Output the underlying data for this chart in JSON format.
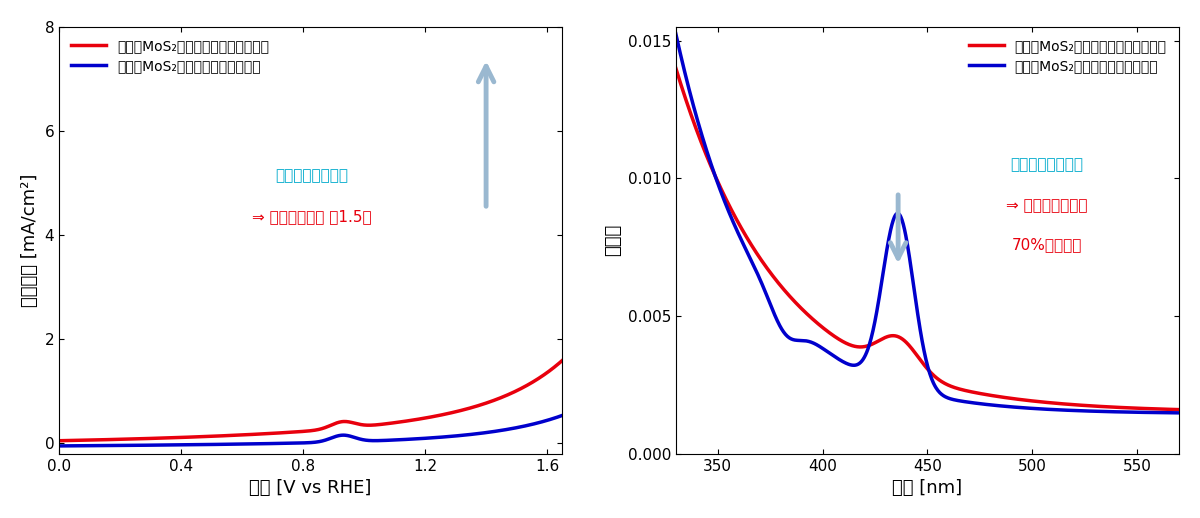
{
  "left_xlabel": "電位 [V vs RHE]",
  "left_ylabel": "電流密度 [mA/cm²]",
  "left_xlim": [
    0.0,
    1.65
  ],
  "left_ylim": [
    -0.2,
    8.0
  ],
  "left_xticks": [
    0.0,
    0.4,
    0.8,
    1.2,
    1.6
  ],
  "left_yticks": [
    0,
    2,
    4,
    6,
    8
  ],
  "right_xlabel": "波長 [nm]",
  "right_ylabel": "吸光度",
  "right_xlim": [
    330,
    570
  ],
  "right_ylim": [
    0.0,
    0.0155
  ],
  "right_xticks": [
    350,
    400,
    450,
    500,
    550
  ],
  "right_yticks": [
    0.0,
    0.005,
    0.01,
    0.015
  ],
  "red_label": "キラルMoS₂（スピンが揃っている）",
  "blue_label": "ラセミMoS₂（スピンがバラバラ）",
  "red_color": "#e8000d",
  "blue_color": "#0000cc",
  "ann1_l1": "キラリティの導入",
  "ann1_l2": "⇒ 酸素生成効率 約1.5倍",
  "ann2_l1": "キラリティの導入",
  "ann2_l2": "⇒ 過酸化水素生成",
  "ann2_l3": "70%以上抑制",
  "cyan_color": "#00aacc",
  "arrow_color": "#9ab8d0",
  "bg_color": "#ffffff"
}
